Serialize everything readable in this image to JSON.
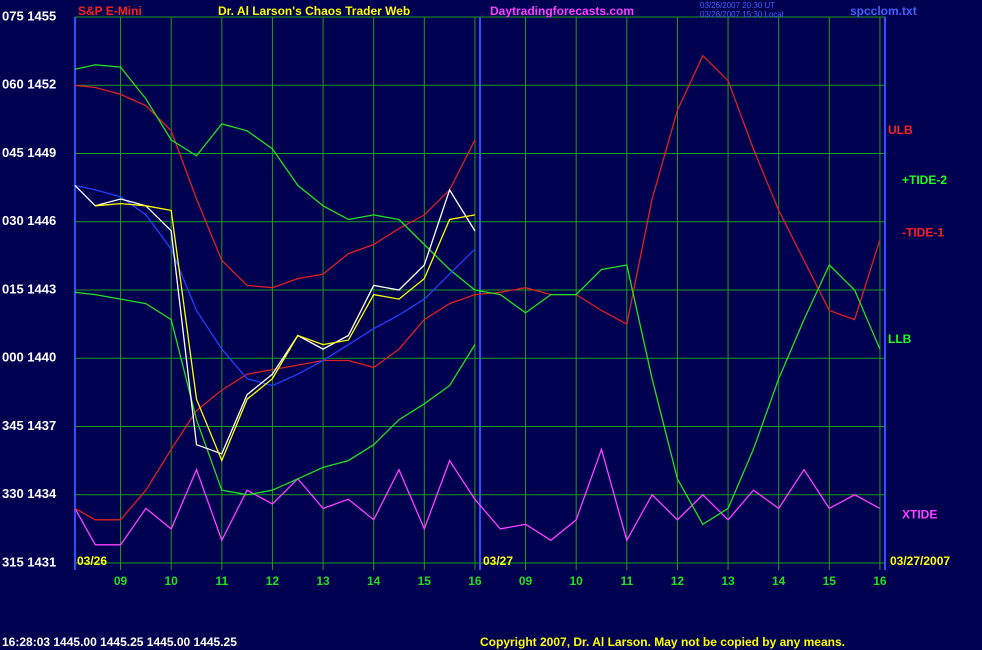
{
  "chart_data": {
    "type": "line",
    "title": "Dr. Al Larson's Chaos Trader Web",
    "symbol": "S&P E-Mini",
    "site": "Daytradingforecasts.com",
    "stamp_lines": [
      "03/26/2007 20:30 UT",
      "03/26/2007 15:30 Local"
    ],
    "file": "spcclom.txt",
    "date_labels": [
      "03/26",
      "03/27",
      "03/27/2007"
    ],
    "quote": "16:28:03 1445.00 1445.25 1445.00 1445.25",
    "copyright": "Copyright 2007, Dr. Al Larson. May not be copied by any means.",
    "grid": true,
    "xlim": [
      8.1,
      24.1
    ],
    "ylim": [
      1431,
      1455
    ],
    "xticks": [
      {
        "value": 9,
        "label": "09"
      },
      10,
      11,
      12,
      13,
      14,
      15,
      16,
      {
        "value": 17,
        "label": "09"
      },
      {
        "value": 18,
        "label": "10"
      },
      {
        "value": 19,
        "label": "11"
      },
      {
        "value": 20,
        "label": "12"
      },
      {
        "value": 21,
        "label": "13"
      },
      {
        "value": 22,
        "label": "14"
      },
      {
        "value": 23,
        "label": "15"
      },
      {
        "value": 24,
        "label": "16"
      }
    ],
    "yticks": [
      {
        "value": 1431,
        "label": "315 1431"
      },
      {
        "value": 1434,
        "label": "330 1434"
      },
      {
        "value": 1437,
        "label": "345 1437"
      },
      {
        "value": 1440,
        "label": "000 1440"
      },
      {
        "value": 1443,
        "label": "015 1443"
      },
      {
        "value": 1446,
        "label": "030 1446"
      },
      {
        "value": 1449,
        "label": "045 1449"
      },
      {
        "value": 1452,
        "label": "060 1452"
      },
      {
        "value": 1455,
        "label": "075 1455"
      }
    ],
    "annotations": [
      {
        "text": "ULB",
        "color": "#ff2020",
        "y": 1450.0
      },
      {
        "text": "+TIDE-2",
        "color": "#20ff20",
        "y": 1447.8
      },
      {
        "text": "-TIDE-1",
        "color": "#ff2020",
        "y": 1445.5
      },
      {
        "text": "LLB",
        "color": "#20ff20",
        "y": 1440.8
      },
      {
        "text": "XTIDE",
        "color": "#ff40ff",
        "y": 1433.1
      }
    ],
    "x": [
      8.1,
      8.5,
      9,
      9.5,
      10,
      10.5,
      11,
      11.5,
      12,
      12.5,
      13,
      13.5,
      14,
      14.5,
      15,
      15.5,
      16,
      16.5,
      17,
      17.5,
      18,
      18.5,
      19,
      19.5,
      20,
      20.5,
      21,
      21.5,
      22,
      22.5,
      23,
      23.5,
      24
    ],
    "series": [
      {
        "color": "#ff40ff",
        "values": [
          1433.4,
          1431.8,
          1431.8,
          1433.4,
          1432.5,
          1435.1,
          1432.0,
          1434.2,
          1433.6,
          1434.7,
          1433.4,
          1433.8,
          1432.9,
          1435.1,
          1432.5,
          1435.5,
          1433.8,
          1432.5,
          1432.7,
          1432.0,
          1432.9,
          1436.0,
          1432.0,
          1434.0,
          1432.9,
          1434.0,
          1432.9,
          1434.2,
          1433.4,
          1435.1,
          1433.4,
          1434.0,
          1433.4
        ]
      },
      {
        "color": "#e02020",
        "values": [
          1452.0,
          1451.9,
          1451.6,
          1451.1,
          1450.0,
          1447.0,
          1444.3,
          1443.2,
          1443.1,
          1443.5,
          1443.7,
          1444.6,
          1445.0,
          1445.7,
          1446.3,
          1447.4,
          1449.6,
          null,
          null,
          null,
          null,
          null,
          null,
          null,
          null,
          null,
          null,
          null,
          null,
          null,
          null,
          null,
          null
        ]
      },
      {
        "color": "#e02020",
        "values": [
          1433.4,
          1432.9,
          1432.9,
          1434.2,
          1436.0,
          1437.7,
          1438.6,
          1439.3,
          1439.5,
          1439.7,
          1439.9,
          1439.9,
          1439.6,
          1440.4,
          1441.7,
          1442.4,
          1442.8,
          1442.9,
          1443.1,
          1442.8,
          1442.8,
          1442.1,
          1441.5,
          1447.0,
          1450.9,
          1453.3,
          1452.2,
          1449.2,
          1446.5,
          1444.3,
          1442.1,
          1441.7,
          1445.2
        ]
      },
      {
        "color": "#20e020",
        "values": [
          1452.7,
          1452.9,
          1452.8,
          1451.4,
          1449.6,
          1448.9,
          1450.3,
          1450.0,
          1449.2,
          1447.6,
          1446.7,
          1446.1,
          1446.3,
          1446.1,
          1445.0,
          1443.9,
          1443.0,
          1442.8,
          1442.0,
          1442.8,
          1442.8,
          1443.9,
          1444.1,
          1439.1,
          1434.7,
          1432.7,
          1433.4,
          1436.0,
          1439.1,
          1441.7,
          1444.1,
          1443.0,
          1440.4
        ]
      },
      {
        "color": "#20e020",
        "values": [
          1442.9,
          1442.8,
          1442.6,
          1442.4,
          1441.7,
          1437.3,
          1434.2,
          1434.0,
          1434.2,
          1434.7,
          1435.2,
          1435.5,
          1436.2,
          1437.3,
          1438.0,
          1438.8,
          1440.6,
          null,
          null,
          null,
          null,
          null,
          null,
          null,
          null,
          null,
          null,
          null,
          null,
          null,
          null,
          null,
          null
        ]
      },
      {
        "color": "#2040ff",
        "values": [
          1447.6,
          1447.4,
          1447.1,
          1446.3,
          1444.8,
          1442.1,
          1440.4,
          1439.1,
          1438.8,
          1439.3,
          1439.9,
          1440.6,
          1441.3,
          1441.9,
          1442.6,
          1443.7,
          1444.8,
          null,
          null,
          null,
          null,
          null,
          null,
          null,
          null,
          null,
          null,
          null,
          null,
          null,
          null,
          null,
          null
        ]
      },
      {
        "color": "#ffffff",
        "values": [
          1447.6,
          1446.7,
          1447.0,
          1446.7,
          1445.6,
          1436.2,
          1435.8,
          1438.4,
          1439.3,
          1441.0,
          1440.4,
          1441.0,
          1443.2,
          1443.0,
          1444.1,
          1447.4,
          1445.6,
          null,
          null,
          null,
          null,
          null,
          null,
          null,
          null,
          null,
          null,
          null,
          null,
          null,
          null,
          null,
          null
        ]
      },
      {
        "color": "#ffff00",
        "values": [
          null,
          1446.7,
          1446.8,
          1446.7,
          1446.5,
          1438.2,
          1435.5,
          1438.2,
          1439.1,
          1441.0,
          1440.6,
          1440.8,
          1442.8,
          1442.6,
          1443.5,
          1446.1,
          1446.3,
          null,
          null,
          null,
          null,
          null,
          null,
          null,
          null,
          null,
          null,
          null,
          null,
          null,
          null,
          null,
          null
        ]
      }
    ]
  }
}
